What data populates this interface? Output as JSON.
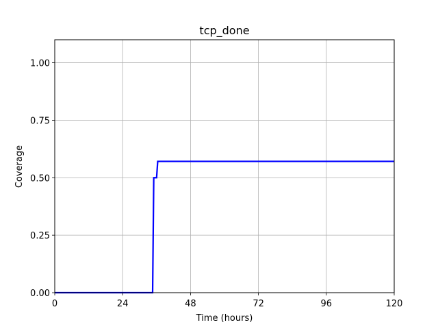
{
  "chart_data": {
    "type": "line",
    "title": "tcp_done",
    "xlabel": "Time (hours)",
    "ylabel": "Coverage",
    "xlim": [
      0,
      120
    ],
    "ylim": [
      0,
      1.1
    ],
    "x_ticks": [
      0,
      24,
      48,
      72,
      96,
      120
    ],
    "x_tick_labels": [
      "0",
      "24",
      "48",
      "72",
      "96",
      "120"
    ],
    "y_ticks": [
      0,
      0.25,
      0.5,
      0.75,
      1.0
    ],
    "y_tick_labels": [
      "0.00",
      "0.25",
      "0.50",
      "0.75",
      "1.00"
    ],
    "grid": true,
    "series": [
      {
        "color": "#0000ff",
        "x": [
          0,
          34.6,
          35.0,
          36.0,
          36.4,
          120
        ],
        "y": [
          0,
          0,
          0.5,
          0.5,
          0.571,
          0.571
        ]
      }
    ]
  }
}
